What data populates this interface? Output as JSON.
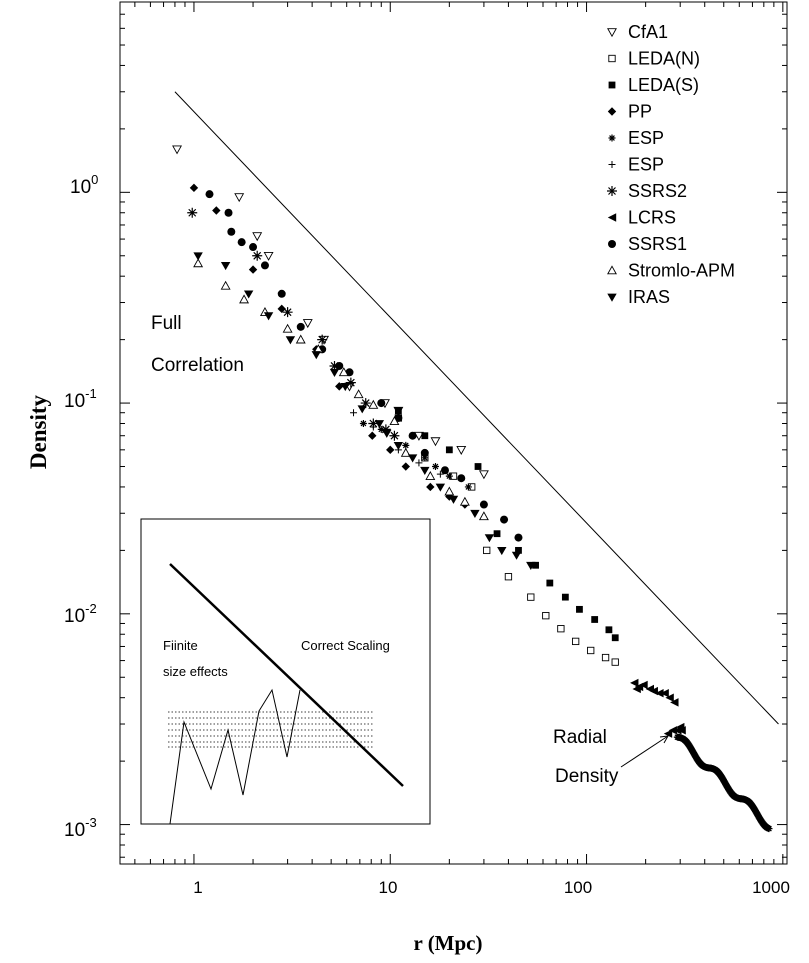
{
  "chart_data": {
    "type": "scatter",
    "xlabel": "r (Mpc)",
    "ylabel": "Density",
    "xscale": "log",
    "yscale": "log",
    "xlim": [
      0.42,
      1050
    ],
    "ylim": [
      0.00065,
      8.0
    ],
    "x_ticks": [
      "1",
      "10",
      "100",
      "1000"
    ],
    "y_ticks": [
      {
        "base": "10",
        "exp": "0"
      },
      {
        "base": "10",
        "exp": "-1"
      },
      {
        "base": "10",
        "exp": "-2"
      },
      {
        "base": "10",
        "exp": "-3"
      }
    ],
    "legend_position": "top-right",
    "series": [
      {
        "name": "CfA1",
        "marker": "triangle-down-open",
        "points": [
          [
            0.82,
            1.6
          ],
          [
            1.7,
            0.95
          ],
          [
            2.1,
            0.62
          ],
          [
            2.4,
            0.5
          ],
          [
            3.8,
            0.24
          ],
          [
            4.6,
            0.2
          ],
          [
            6.2,
            0.12
          ],
          [
            9.4,
            0.1
          ],
          [
            11,
            0.092
          ],
          [
            14,
            0.07
          ],
          [
            17,
            0.066
          ],
          [
            23,
            0.06
          ],
          [
            30,
            0.046
          ]
        ]
      },
      {
        "name": "LEDA(N)",
        "marker": "square-open",
        "points": [
          [
            11,
            0.085
          ],
          [
            15,
            0.055
          ],
          [
            21,
            0.045
          ],
          [
            26,
            0.04
          ],
          [
            31,
            0.02
          ],
          [
            40,
            0.015
          ],
          [
            52,
            0.012
          ],
          [
            62,
            0.0098
          ],
          [
            74,
            0.0085
          ],
          [
            88,
            0.0074
          ],
          [
            105,
            0.0067
          ],
          [
            125,
            0.0062
          ],
          [
            140,
            0.0059
          ]
        ]
      },
      {
        "name": "LEDA(S)",
        "marker": "square-filled",
        "points": [
          [
            11,
            0.092
          ],
          [
            15,
            0.07
          ],
          [
            20,
            0.06
          ],
          [
            28,
            0.05
          ],
          [
            35,
            0.024
          ],
          [
            45,
            0.02
          ],
          [
            55,
            0.017
          ],
          [
            65,
            0.014
          ],
          [
            78,
            0.012
          ],
          [
            92,
            0.0105
          ],
          [
            110,
            0.0094
          ],
          [
            130,
            0.0084
          ],
          [
            140,
            0.0077
          ]
        ]
      },
      {
        "name": "PP",
        "marker": "diamond-filled",
        "points": [
          [
            1.0,
            1.05
          ],
          [
            1.3,
            0.82
          ],
          [
            2.0,
            0.43
          ],
          [
            2.8,
            0.28
          ],
          [
            4.2,
            0.18
          ],
          [
            5.5,
            0.12
          ],
          [
            8.1,
            0.07
          ],
          [
            10,
            0.06
          ],
          [
            12,
            0.05
          ],
          [
            16,
            0.04
          ],
          [
            20,
            0.036
          ],
          [
            24,
            0.033
          ]
        ]
      },
      {
        "name": "ESP",
        "marker": "asterisk-small",
        "points": [
          [
            7.3,
            0.08
          ],
          [
            9,
            0.075
          ],
          [
            12,
            0.063
          ],
          [
            15,
            0.055
          ],
          [
            17,
            0.05
          ],
          [
            20,
            0.045
          ],
          [
            25,
            0.04
          ]
        ]
      },
      {
        "name": "ESP",
        "marker": "plus",
        "points": [
          [
            6.5,
            0.09
          ],
          [
            8.2,
            0.077
          ],
          [
            11,
            0.06
          ],
          [
            14,
            0.052
          ],
          [
            18,
            0.046
          ]
        ]
      },
      {
        "name": "SSRS2",
        "marker": "asterisk",
        "points": [
          [
            0.98,
            0.8
          ],
          [
            2.1,
            0.5
          ],
          [
            3.0,
            0.27
          ],
          [
            4.5,
            0.2
          ],
          [
            5.2,
            0.15
          ],
          [
            6.3,
            0.125
          ],
          [
            7.5,
            0.1
          ],
          [
            8.2,
            0.08
          ],
          [
            9.5,
            0.075
          ],
          [
            10.5,
            0.07
          ]
        ]
      },
      {
        "name": "LCRS",
        "marker": "triangle-left-filled",
        "points": [
          [
            175,
            0.0047
          ],
          [
            185,
            0.0045
          ],
          [
            195,
            0.0046
          ],
          [
            210,
            0.0044
          ],
          [
            220,
            0.0043
          ],
          [
            235,
            0.0042
          ],
          [
            250,
            0.0042
          ],
          [
            265,
            0.004
          ],
          [
            280,
            0.0038
          ],
          [
            180,
            0.0044
          ],
          [
            300,
            0.0029
          ],
          [
            260,
            0.0027
          ],
          [
            275,
            0.0028
          ],
          [
            290,
            0.0028
          ],
          [
            305,
            0.0028
          ]
        ]
      },
      {
        "name": "SSRS1",
        "marker": "circle-filled",
        "points": [
          [
            1.2,
            0.98
          ],
          [
            1.5,
            0.8
          ],
          [
            1.55,
            0.65
          ],
          [
            1.75,
            0.58
          ],
          [
            2,
            0.55
          ],
          [
            2.3,
            0.45
          ],
          [
            2.8,
            0.33
          ],
          [
            3.5,
            0.23
          ],
          [
            4.5,
            0.18
          ],
          [
            5.5,
            0.15
          ],
          [
            6.2,
            0.14
          ],
          [
            9,
            0.1
          ],
          [
            11,
            0.085
          ],
          [
            13,
            0.07
          ],
          [
            15,
            0.058
          ],
          [
            19,
            0.048
          ],
          [
            23,
            0.044
          ],
          [
            30,
            0.033
          ],
          [
            38,
            0.028
          ],
          [
            45,
            0.023
          ]
        ]
      },
      {
        "name": "Stromlo-APM",
        "marker": "triangle-up-open",
        "points": [
          [
            1.05,
            0.46
          ],
          [
            1.45,
            0.36
          ],
          [
            1.8,
            0.31
          ],
          [
            2.3,
            0.27
          ],
          [
            3.0,
            0.225
          ],
          [
            3.5,
            0.2
          ],
          [
            4.3,
            0.18
          ],
          [
            5.8,
            0.14
          ],
          [
            6.9,
            0.11
          ],
          [
            8.2,
            0.098
          ],
          [
            10.5,
            0.082
          ],
          [
            12,
            0.058
          ],
          [
            16,
            0.045
          ],
          [
            20,
            0.038
          ],
          [
            24,
            0.034
          ],
          [
            30,
            0.029
          ]
        ]
      },
      {
        "name": "IRAS",
        "marker": "triangle-down-filled",
        "points": [
          [
            1.05,
            0.5
          ],
          [
            1.45,
            0.45
          ],
          [
            1.9,
            0.33
          ],
          [
            2.4,
            0.26
          ],
          [
            3.1,
            0.2
          ],
          [
            4.2,
            0.17
          ],
          [
            5.2,
            0.14
          ],
          [
            5.9,
            0.12
          ],
          [
            7.2,
            0.094
          ],
          [
            8.8,
            0.08
          ],
          [
            9.6,
            0.072
          ],
          [
            11,
            0.063
          ],
          [
            13,
            0.055
          ],
          [
            15,
            0.048
          ],
          [
            18,
            0.04
          ],
          [
            21,
            0.035
          ],
          [
            27,
            0.03
          ],
          [
            32,
            0.023
          ],
          [
            37,
            0.02
          ],
          [
            44,
            0.019
          ],
          [
            52,
            0.017
          ]
        ]
      }
    ],
    "radial_density": {
      "name": "Radial Density",
      "x_range": [
        290,
        850
      ],
      "y_range": [
        0.0026,
        0.00099
      ]
    },
    "reference_line": {
      "x": [
        0.8,
        950
      ],
      "y": [
        3.0,
        0.003
      ]
    },
    "annotations": [
      {
        "text": "Full",
        "x": 0.62,
        "y": 0.17
      },
      {
        "text": "Correlation",
        "x": 0.62,
        "y": 0.105
      },
      {
        "text": "Radial",
        "x": 190,
        "y": 0.0022
      },
      {
        "text": "Density",
        "x": 200,
        "y": 0.00136
      }
    ],
    "inset": {
      "labels": [
        "Fiinite",
        "size effects",
        "Correct Scaling"
      ]
    }
  }
}
